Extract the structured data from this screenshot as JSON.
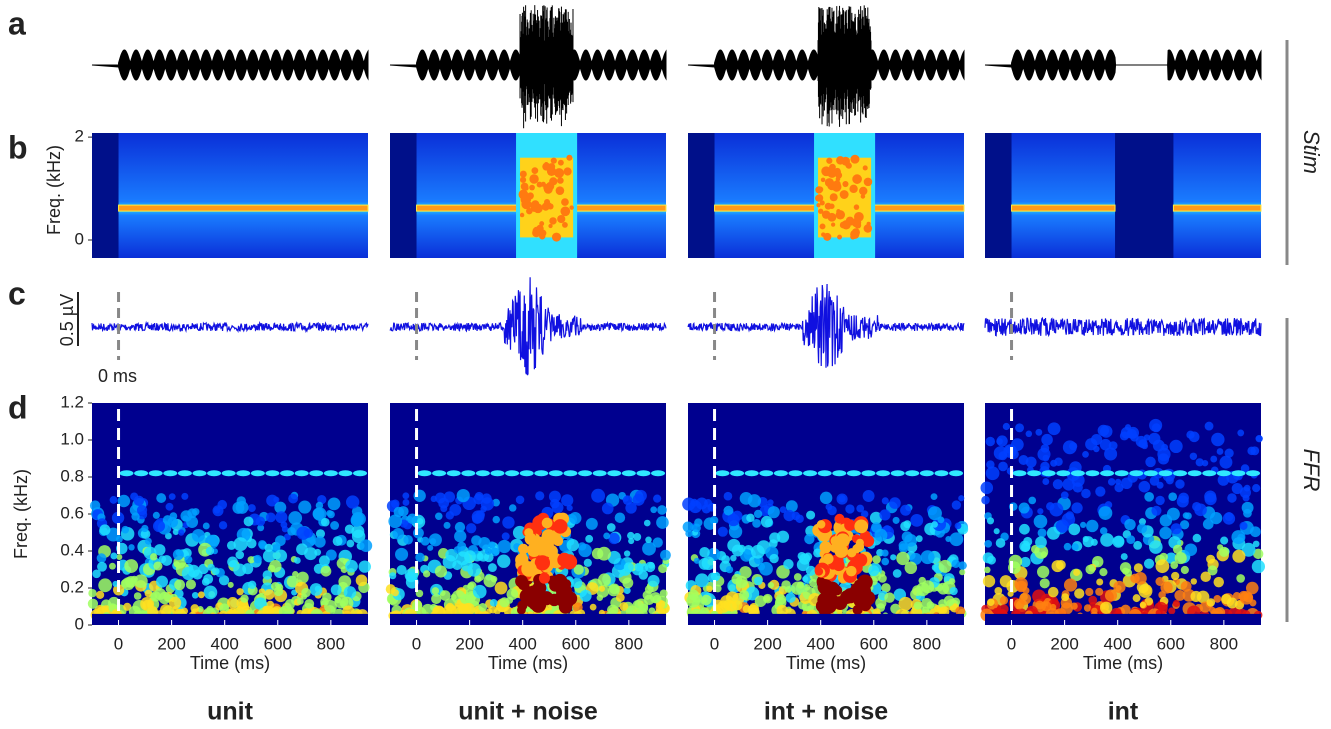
{
  "panel_letters": [
    "a",
    "b",
    "c",
    "d"
  ],
  "side_labels": [
    "Stim",
    "FFR"
  ],
  "columns": [
    "unit",
    "unit + noise",
    "int + noise",
    "int"
  ],
  "stim_spectrogram": {
    "ylabel": "Freq. (kHz)",
    "ylim": [
      -0.35,
      2.08
    ],
    "yticks": [
      0,
      2
    ]
  },
  "ffr_waveform": {
    "scale_label": "0.5 µV",
    "onset_label": "0 ms"
  },
  "ffr_spectrogram": {
    "ylabel": "Freq. (kHz)",
    "ylim": [
      0,
      1.2
    ],
    "yticks": [
      0,
      0.2,
      0.4,
      0.6,
      0.8,
      {
        "value": 1,
        "label": "1.0"
      },
      1.2
    ]
  },
  "time_axis": {
    "xlabel": "Time (ms)",
    "xlim": [
      -100,
      940
    ],
    "xticks": [
      0,
      200,
      400,
      600,
      800
    ]
  }
}
